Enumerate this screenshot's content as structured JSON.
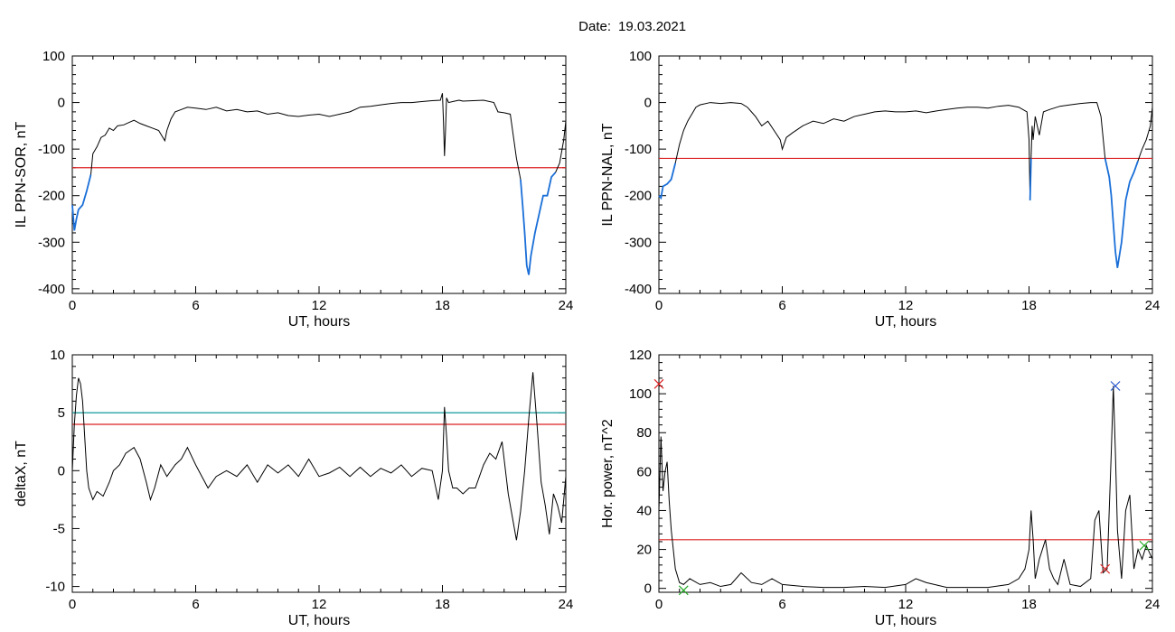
{
  "figure": {
    "date_label": "Date:",
    "date_value": "19.03.2021"
  },
  "colors": {
    "trace": "#000000",
    "highlight": "#1a6fd8",
    "threshold": "#dd2222",
    "threshold2": "#119999",
    "marker_red": "#dd2222",
    "marker_blue": "#2255cc",
    "marker_green": "#22aa22"
  },
  "chart_data": [
    {
      "type": "line",
      "xlabel": "UT, hours",
      "ylabel": "IL PPN-SOR, nT",
      "xlim": [
        0,
        24
      ],
      "ylim": [
        -410,
        100
      ],
      "xticks": [
        0,
        6,
        12,
        18,
        24
      ],
      "yticks": [
        -400,
        -300,
        -200,
        -100,
        0,
        100
      ],
      "threshold": -140,
      "highlight_below": -140,
      "x": [
        0,
        0.1,
        0.2,
        0.3,
        0.5,
        0.7,
        0.9,
        1.0,
        1.2,
        1.4,
        1.6,
        1.8,
        2.0,
        2.2,
        2.5,
        2.8,
        3.0,
        3.3,
        3.6,
        3.9,
        4.2,
        4.5,
        4.6,
        4.8,
        5.0,
        5.3,
        5.6,
        6.0,
        6.5,
        7.0,
        7.5,
        8.0,
        8.5,
        9.0,
        9.5,
        10.0,
        10.5,
        11.0,
        11.5,
        12.0,
        12.5,
        13.0,
        13.5,
        14.0,
        14.5,
        15.0,
        15.5,
        16.0,
        16.5,
        17.0,
        17.5,
        17.9,
        18.0,
        18.05,
        18.1,
        18.15,
        18.2,
        18.3,
        18.5,
        18.8,
        19.0,
        19.5,
        20.0,
        20.5,
        20.7,
        21.0,
        21.3,
        21.6,
        21.8,
        21.9,
        22.0,
        22.1,
        22.2,
        22.3,
        22.5,
        22.7,
        22.9,
        23.1,
        23.3,
        23.5,
        23.7,
        23.9,
        24.0
      ],
      "y": [
        -220,
        -275,
        -250,
        -230,
        -220,
        -190,
        -155,
        -110,
        -95,
        -75,
        -70,
        -55,
        -60,
        -50,
        -48,
        -42,
        -38,
        -45,
        -50,
        -55,
        -60,
        -82,
        -60,
        -35,
        -20,
        -15,
        -10,
        -12,
        -15,
        -10,
        -18,
        -15,
        -20,
        -18,
        -25,
        -22,
        -28,
        -30,
        -27,
        -25,
        -30,
        -25,
        -20,
        -10,
        -8,
        -5,
        -2,
        0,
        0,
        2,
        4,
        5,
        20,
        -40,
        -115,
        -60,
        10,
        0,
        2,
        5,
        3,
        4,
        5,
        0,
        -20,
        -22,
        -25,
        -120,
        -165,
        -220,
        -280,
        -350,
        -370,
        -330,
        -280,
        -240,
        -200,
        -200,
        -160,
        -150,
        -130,
        -80,
        -40
      ]
    },
    {
      "type": "line",
      "xlabel": "UT, hours",
      "ylabel": "IL PPN-NAL, nT",
      "xlim": [
        0,
        24
      ],
      "ylim": [
        -410,
        100
      ],
      "xticks": [
        0,
        6,
        12,
        18,
        24
      ],
      "yticks": [
        -400,
        -300,
        -200,
        -100,
        0,
        100
      ],
      "threshold": -120,
      "highlight_below": -120,
      "x": [
        0,
        0.1,
        0.2,
        0.4,
        0.6,
        0.8,
        1.0,
        1.2,
        1.4,
        1.6,
        1.8,
        2.0,
        2.5,
        3.0,
        3.5,
        4.0,
        4.3,
        4.5,
        4.7,
        5.0,
        5.3,
        5.6,
        5.9,
        6.0,
        6.2,
        6.5,
        7.0,
        7.5,
        8.0,
        8.5,
        9.0,
        9.5,
        10.0,
        10.5,
        11.0,
        11.5,
        12.0,
        12.5,
        13.0,
        13.5,
        14.0,
        14.5,
        15.0,
        15.5,
        16.0,
        16.5,
        17.0,
        17.5,
        17.9,
        18.0,
        18.05,
        18.1,
        18.15,
        18.2,
        18.3,
        18.5,
        18.7,
        19.0,
        19.5,
        20.0,
        20.5,
        21.0,
        21.3,
        21.5,
        21.7,
        21.9,
        22.0,
        22.1,
        22.2,
        22.3,
        22.5,
        22.7,
        22.9,
        23.1,
        23.3,
        23.5,
        23.7,
        23.9,
        24.0
      ],
      "y": [
        -200,
        -205,
        -180,
        -175,
        -165,
        -130,
        -90,
        -60,
        -40,
        -25,
        -10,
        -5,
        0,
        -2,
        0,
        -2,
        -10,
        -20,
        -30,
        -50,
        -40,
        -60,
        -80,
        -100,
        -75,
        -65,
        -50,
        -40,
        -45,
        -35,
        -40,
        -30,
        -25,
        -20,
        -18,
        -20,
        -20,
        -18,
        -22,
        -18,
        -15,
        -12,
        -10,
        -10,
        -12,
        -8,
        -6,
        -10,
        -20,
        -80,
        -210,
        -120,
        -50,
        -80,
        -30,
        -70,
        -20,
        -15,
        -8,
        -5,
        -2,
        0,
        0,
        -30,
        -120,
        -160,
        -200,
        -260,
        -320,
        -355,
        -300,
        -210,
        -170,
        -150,
        -125,
        -100,
        -80,
        -50,
        -10
      ]
    },
    {
      "type": "line",
      "xlabel": "UT, hours",
      "ylabel": "deltaX, nT",
      "xlim": [
        0,
        24
      ],
      "ylim": [
        -10.5,
        10
      ],
      "xticks": [
        0,
        6,
        12,
        18,
        24
      ],
      "yticks": [
        -10,
        -5,
        0,
        5,
        10
      ],
      "thresholds": [
        5,
        4
      ],
      "x": [
        0,
        0.1,
        0.2,
        0.3,
        0.4,
        0.5,
        0.6,
        0.7,
        0.8,
        1.0,
        1.2,
        1.5,
        1.8,
        2.0,
        2.3,
        2.6,
        3.0,
        3.3,
        3.6,
        3.8,
        4.0,
        4.3,
        4.6,
        5.0,
        5.3,
        5.6,
        6.0,
        6.3,
        6.6,
        7.0,
        7.5,
        8.0,
        8.5,
        9.0,
        9.5,
        10.0,
        10.5,
        11.0,
        11.5,
        12.0,
        12.5,
        13.0,
        13.5,
        14.0,
        14.5,
        15.0,
        15.5,
        16.0,
        16.5,
        17.0,
        17.5,
        17.8,
        18.0,
        18.1,
        18.2,
        18.3,
        18.5,
        18.7,
        19.0,
        19.3,
        19.6,
        20.0,
        20.3,
        20.6,
        20.9,
        21.2,
        21.4,
        21.6,
        21.8,
        22.0,
        22.2,
        22.4,
        22.6,
        22.8,
        23.0,
        23.2,
        23.4,
        23.6,
        23.8,
        24.0
      ],
      "y": [
        0,
        4,
        6.5,
        8,
        7.5,
        6,
        3,
        0,
        -1.5,
        -2.5,
        -1.8,
        -2.2,
        -1.0,
        0,
        0.5,
        1.5,
        2.0,
        1.0,
        -1.0,
        -2.5,
        -1.5,
        0.5,
        -0.5,
        0.5,
        1.0,
        2.0,
        0.5,
        -0.5,
        -1.5,
        -0.5,
        0,
        -0.5,
        0.5,
        -1.0,
        0.5,
        -0.2,
        0.5,
        -0.5,
        1.0,
        -0.5,
        -0.2,
        0.3,
        -0.5,
        0.3,
        -0.5,
        0.2,
        -0.2,
        0.5,
        -0.5,
        0.2,
        0.0,
        -2.5,
        0.0,
        5.5,
        3.0,
        0.0,
        -1.5,
        -1.5,
        -2.0,
        -1.5,
        -1.5,
        0.5,
        1.5,
        1.0,
        2.5,
        -2.0,
        -4.0,
        -6.0,
        -3.5,
        0.0,
        4.5,
        8.5,
        4.0,
        -1.0,
        -3.0,
        -5.5,
        -2.0,
        -3.0,
        -4.5,
        -0.5
      ]
    },
    {
      "type": "line",
      "xlabel": "UT, hours",
      "ylabel": "Hor. power, nT^2",
      "xlim": [
        0,
        24
      ],
      "ylim": [
        -2,
        120
      ],
      "xticks": [
        0,
        6,
        12,
        18,
        24
      ],
      "yticks": [
        0,
        20,
        40,
        60,
        80,
        100,
        120
      ],
      "threshold": 25,
      "x": [
        0,
        0.1,
        0.2,
        0.3,
        0.4,
        0.5,
        0.6,
        0.8,
        1.0,
        1.2,
        1.5,
        2.0,
        2.5,
        3.0,
        3.5,
        4.0,
        4.5,
        5.0,
        5.5,
        6.0,
        7.0,
        8.0,
        9.0,
        10.0,
        11.0,
        12.0,
        12.5,
        13.0,
        14.0,
        15.0,
        16.0,
        17.0,
        17.5,
        17.8,
        18.0,
        18.1,
        18.2,
        18.3,
        18.5,
        18.8,
        19.0,
        19.2,
        19.4,
        19.7,
        20.0,
        20.5,
        21.0,
        21.2,
        21.4,
        21.6,
        21.8,
        22.0,
        22.1,
        22.2,
        22.3,
        22.5,
        22.7,
        22.9,
        23.1,
        23.3,
        23.5,
        23.7,
        24.0
      ],
      "y": [
        40,
        78,
        50,
        60,
        65,
        45,
        30,
        10,
        3,
        2,
        5,
        2,
        3,
        1,
        2,
        8,
        3,
        2,
        5,
        2,
        1,
        0.5,
        0.5,
        1,
        0.5,
        2,
        5,
        3,
        0.5,
        0.5,
        0.5,
        2,
        5,
        10,
        20,
        40,
        25,
        5,
        15,
        25,
        10,
        5,
        2,
        15,
        2,
        1,
        5,
        35,
        40,
        8,
        10,
        70,
        104,
        70,
        30,
        5,
        40,
        48,
        10,
        20,
        15,
        22,
        15
      ],
      "markers": [
        {
          "x": 0.0,
          "y": 105,
          "color": "red"
        },
        {
          "x": 21.7,
          "y": 10,
          "color": "red"
        },
        {
          "x": 22.2,
          "y": 104,
          "color": "blue"
        },
        {
          "x": 23.6,
          "y": 22,
          "color": "green"
        },
        {
          "x": 1.2,
          "y": -1,
          "color": "green"
        }
      ]
    }
  ]
}
